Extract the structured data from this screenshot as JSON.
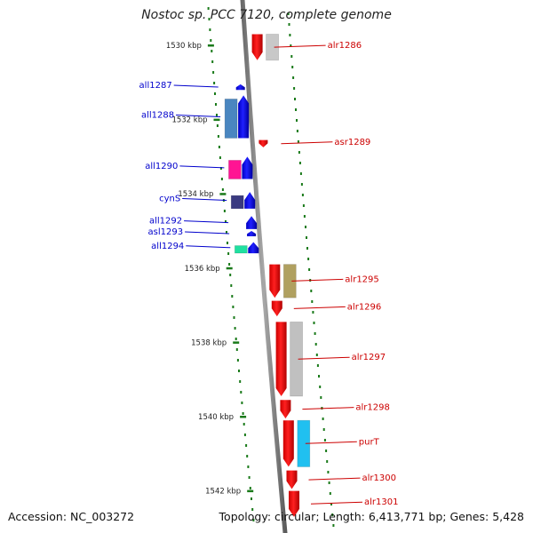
{
  "title": "Nostoc sp. PCC 7120, complete genome",
  "footer": {
    "accession_label": "Accession:",
    "accession": "NC_003272",
    "topology_label": "Topology:",
    "topology": "circular",
    "length_label": "Length:",
    "length": "6,413,771 bp",
    "genes_label": "Genes:",
    "genes": "5,428"
  },
  "scale": {
    "unit": "kbp",
    "ticks": [
      1530,
      1532,
      1534,
      1536,
      1538,
      1540,
      1542
    ]
  },
  "colors": {
    "backbone": "#8c8c8c",
    "forward_gene": "#ff0000",
    "reverse_gene": "#0000ff",
    "forward_label": "#cc0000",
    "reverse_label": "#0000cc",
    "tick": "#1a7a1a"
  },
  "genes": [
    {
      "name": "alr1286",
      "strand": "+",
      "start_kbp": 1529.7,
      "end_kbp": 1530.4,
      "domain_color": "#c8c8c8"
    },
    {
      "name": "all1287",
      "strand": "-",
      "start_kbp": 1531.05,
      "end_kbp": 1531.2,
      "domain_color": null
    },
    {
      "name": "all1288",
      "strand": "-",
      "start_kbp": 1531.35,
      "end_kbp": 1532.5,
      "domain_color": "#4a86c0"
    },
    {
      "name": "asr1289",
      "strand": "+",
      "start_kbp": 1532.55,
      "end_kbp": 1532.75,
      "domain_color": null
    },
    {
      "name": "all1290",
      "strand": "-",
      "start_kbp": 1533.0,
      "end_kbp": 1533.6,
      "domain_color": "#ff1493"
    },
    {
      "name": "cynS",
      "strand": "-",
      "start_kbp": 1533.95,
      "end_kbp": 1534.4,
      "domain_color": "#3a3a80"
    },
    {
      "name": "all1292",
      "strand": "-",
      "start_kbp": 1534.6,
      "end_kbp": 1534.95,
      "domain_color": null
    },
    {
      "name": "asl1293",
      "strand": "-",
      "start_kbp": 1535.0,
      "end_kbp": 1535.12,
      "domain_color": null
    },
    {
      "name": "all1294",
      "strand": "-",
      "start_kbp": 1535.3,
      "end_kbp": 1535.6,
      "domain_color": "#20e0a0"
    },
    {
      "name": "alr1295",
      "strand": "+",
      "start_kbp": 1535.9,
      "end_kbp": 1536.8,
      "domain_color": "#b0a060"
    },
    {
      "name": "alr1296",
      "strand": "+",
      "start_kbp": 1536.88,
      "end_kbp": 1537.3,
      "domain_color": null
    },
    {
      "name": "alr1297",
      "strand": "+",
      "start_kbp": 1537.45,
      "end_kbp": 1539.45,
      "domain_color": "#c0c0c0"
    },
    {
      "name": "alr1298",
      "strand": "+",
      "start_kbp": 1539.55,
      "end_kbp": 1540.05,
      "domain_color": null
    },
    {
      "name": "purT",
      "strand": "+",
      "start_kbp": 1540.1,
      "end_kbp": 1541.35,
      "domain_color": "#20c0f0"
    },
    {
      "name": "alr1300",
      "strand": "+",
      "start_kbp": 1541.45,
      "end_kbp": 1541.95,
      "domain_color": null
    },
    {
      "name": "alr1301",
      "strand": "+",
      "start_kbp": 1542.0,
      "end_kbp": 1542.7,
      "domain_color": null
    }
  ]
}
